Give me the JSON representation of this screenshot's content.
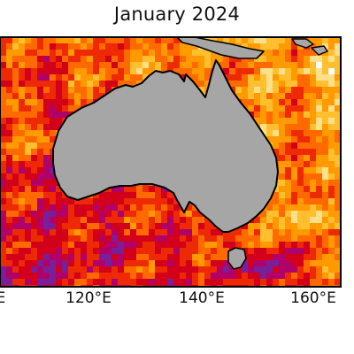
{
  "title": "January 2024",
  "longitude_ticks": [
    "120°E",
    "140°E",
    "160°E"
  ],
  "clipped_left_tick": "E",
  "colors": {
    "land": "#a6a6a6",
    "coastline": "#000000",
    "frame": "#000000",
    "anomaly_palette": [
      "#7a1f9a",
      "#b0006a",
      "#d2001a",
      "#ee2a05",
      "#ff6a00",
      "#ff9a00",
      "#ffbf2e",
      "#ffe08a",
      "#ffffff",
      "#b8e4f2"
    ]
  }
}
